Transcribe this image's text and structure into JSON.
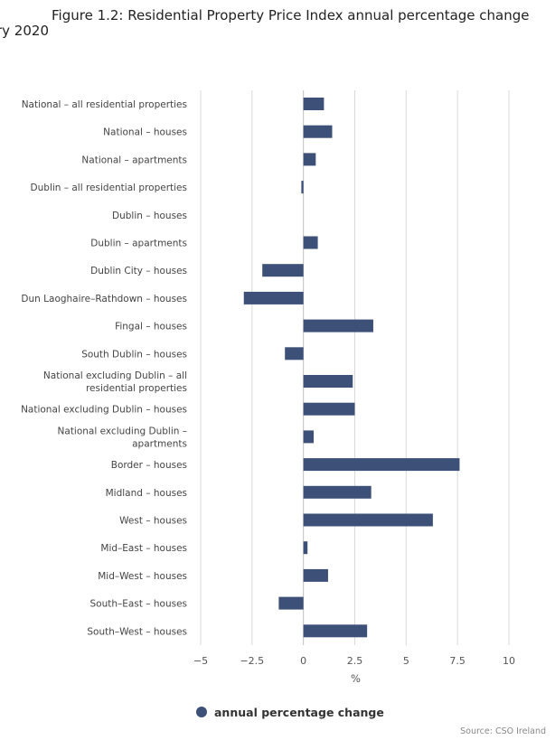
{
  "title": {
    "line1": "Figure 1.2: Residential Property Price Index annual percentage change",
    "line2": "ry 2020"
  },
  "source": "Source: CSO Ireland",
  "colors": {
    "bar": "#3d5078",
    "grid": "#d9d9d9",
    "zero_line": "#bfbfbf"
  },
  "chart_data": {
    "type": "bar",
    "orientation": "horizontal",
    "categories": [
      "National - all residential properties",
      "National - houses",
      "National - apartments",
      "Dublin - all residential properties",
      "Dublin - houses",
      "Dublin - apartments",
      "Dublin City - houses",
      "Dun Laoghaire-Rathdown - houses",
      "Fingal - houses",
      "South Dublin - houses",
      "National excluding Dublin - all residential properties",
      "National excluding Dublin - houses",
      "National excluding Dublin - apartments",
      "Border - houses",
      "Midland - houses",
      "West - houses",
      "Mid-East - houses",
      "Mid-West - houses",
      "South-East - houses",
      "South-West - houses"
    ],
    "series": [
      {
        "name": "annual percentage change",
        "values": [
          1.0,
          1.4,
          0.6,
          -0.1,
          0.0,
          0.7,
          -2.0,
          -2.9,
          3.4,
          -0.9,
          2.4,
          2.5,
          0.5,
          7.6,
          3.3,
          6.3,
          0.2,
          1.2,
          -1.2,
          3.1
        ]
      }
    ],
    "xlabel": "%",
    "xlim": [
      -5,
      10
    ],
    "xticks": [
      -5,
      -2.5,
      0,
      2.5,
      5,
      7.5,
      10
    ],
    "xtick_labels": [
      "−5",
      "−2.5",
      "0",
      "2.5",
      "5",
      "7.5",
      "10"
    ],
    "grid": true,
    "legend_position": "bottom"
  }
}
